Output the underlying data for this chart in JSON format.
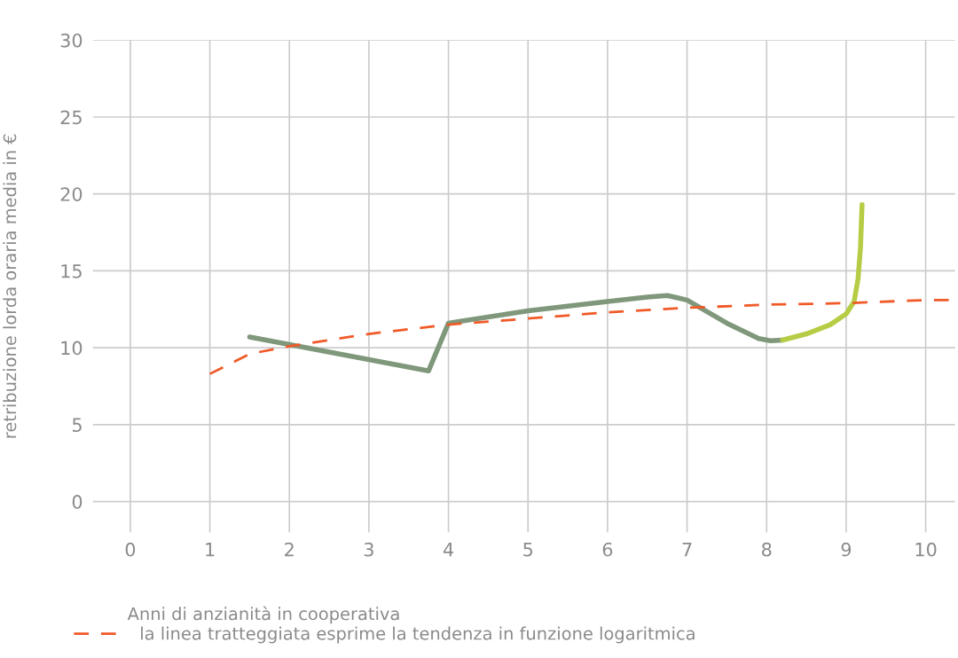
{
  "chart_data": {
    "type": "line",
    "xlabel": "Anni di anzianità in cooperativa",
    "ylabel": "retribuzione lorda oraria media in €",
    "xlim": [
      -0.47,
      10.37
    ],
    "xticks": [
      0,
      1,
      2,
      3,
      4,
      5,
      6,
      7,
      8,
      9,
      10
    ],
    "ylim": [
      -2,
      30
    ],
    "yticks": [
      0,
      5,
      10,
      15,
      20,
      25,
      30
    ],
    "grid": true,
    "legend": "bottom left",
    "marker": "none",
    "series": [
      {
        "color": "#7f977a",
        "line_style": "solid",
        "x": [
          1.5,
          3.75,
          4.0,
          5.0,
          6.0,
          6.5,
          6.75,
          7.0,
          7.5,
          7.9,
          8.05,
          8.2
        ],
        "values": [
          10.7,
          8.5,
          11.6,
          12.4,
          13.0,
          13.3,
          13.4,
          13.1,
          11.6,
          10.6,
          10.45,
          10.5
        ]
      },
      {
        "color": "#b5cc45",
        "line_style": "solid",
        "x": [
          8.2,
          8.5,
          8.8,
          9.0,
          9.1,
          9.15,
          9.18,
          9.2
        ],
        "values": [
          10.5,
          10.9,
          11.5,
          12.2,
          13.0,
          14.5,
          16.5,
          19.3
        ]
      },
      {
        "name": "la linea tratteggiata esprime la tendenza in funzione logaritmica",
        "color": "#f05a28",
        "line_style": "dashed",
        "x": [
          1.0,
          1.5,
          2.0,
          3.0,
          4.0,
          5.0,
          6.0,
          7.0,
          8.0,
          9.0,
          10.0,
          10.37
        ],
        "values": [
          8.3,
          9.6,
          10.1,
          10.9,
          11.5,
          11.9,
          12.3,
          12.6,
          12.8,
          12.9,
          13.1,
          13.1
        ]
      }
    ]
  }
}
